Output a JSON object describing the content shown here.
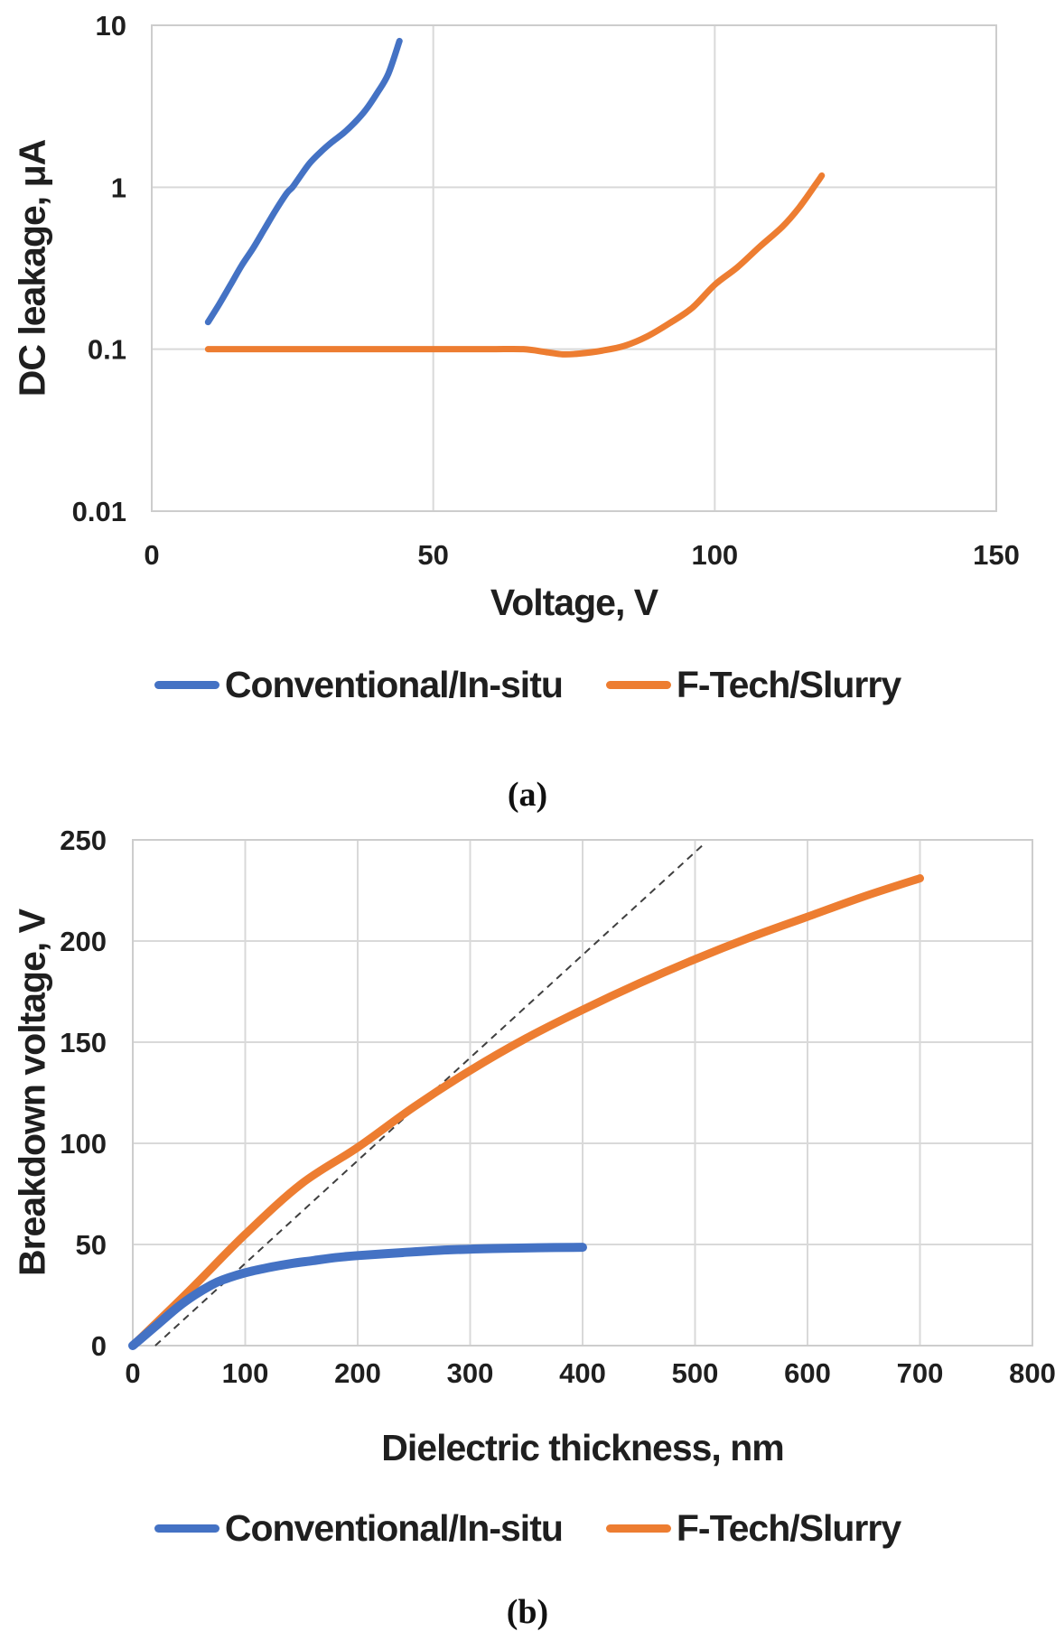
{
  "captions": {
    "a": "(a)",
    "b": "(b)"
  },
  "colors": {
    "series_blue": "#4472C4",
    "series_orange": "#ED7D31",
    "reference_dash": "#3F3F3F",
    "gridline": "#D9D9D9",
    "frame": "#CDCDCD",
    "text": "#1F1F1F"
  },
  "chart_data": [
    {
      "type": "line",
      "panel": "a",
      "title": "",
      "xlabel": "Voltage, V",
      "ylabel": "DC leakage, μA",
      "xlim": [
        0,
        150
      ],
      "xticks": [
        0,
        50,
        100,
        150
      ],
      "xtick_labels": [
        "0",
        "50",
        "100",
        "150"
      ],
      "yscale": "log",
      "ylim": [
        0.01,
        10
      ],
      "yticks": [
        0.01,
        0.1,
        1,
        10
      ],
      "ytick_labels": [
        "0.01",
        "0.1",
        "1",
        "10"
      ],
      "grid": true,
      "legend_position": "bottom",
      "series": [
        {
          "name": "Conventional/In-situ",
          "color": "#4472C4",
          "width": 7,
          "x": [
            10,
            12,
            14,
            16,
            18,
            20,
            22,
            24,
            25,
            26,
            28,
            30,
            32,
            34,
            36,
            38,
            40,
            42,
            44
          ],
          "y": [
            0.147,
            0.19,
            0.25,
            0.33,
            0.42,
            0.55,
            0.72,
            0.92,
            1.0,
            1.12,
            1.4,
            1.65,
            1.9,
            2.15,
            2.5,
            3.0,
            3.8,
            5.0,
            8.0
          ]
        },
        {
          "name": "F-Tech/Slurry",
          "color": "#ED7D31",
          "width": 7,
          "x": [
            10,
            20,
            30,
            40,
            50,
            60,
            66,
            70,
            73,
            76,
            80,
            84,
            88,
            92,
            96,
            100,
            104,
            108,
            112,
            115,
            118,
            119
          ],
          "y": [
            0.1,
            0.1,
            0.1,
            0.1,
            0.1,
            0.1,
            0.1,
            0.096,
            0.093,
            0.094,
            0.098,
            0.105,
            0.12,
            0.145,
            0.18,
            0.25,
            0.32,
            0.43,
            0.57,
            0.75,
            1.05,
            1.18
          ]
        }
      ]
    },
    {
      "type": "line",
      "panel": "b",
      "title": "",
      "xlabel": "Dielectric thickness, nm",
      "ylabel": "Breakdown voltage, V",
      "xlim": [
        0,
        800
      ],
      "xticks": [
        0,
        100,
        200,
        300,
        400,
        500,
        600,
        700,
        800
      ],
      "xtick_labels": [
        "0",
        "100",
        "200",
        "300",
        "400",
        "500",
        "600",
        "700",
        "800"
      ],
      "yscale": "linear",
      "ylim": [
        0,
        250
      ],
      "yticks": [
        0,
        50,
        100,
        150,
        200,
        250
      ],
      "ytick_labels": [
        "0",
        "50",
        "100",
        "150",
        "200",
        "250"
      ],
      "grid": true,
      "legend_position": "bottom",
      "series": [
        {
          "name": "Conventional/In-situ",
          "color": "#4472C4",
          "width": 10,
          "x": [
            0,
            20,
            40,
            55,
            70,
            80,
            100,
            120,
            140,
            160,
            180,
            200,
            240,
            280,
            320,
            360,
            400
          ],
          "y": [
            0,
            9.5,
            19,
            25,
            30,
            32.5,
            36,
            38.5,
            40.5,
            42,
            43.5,
            44.5,
            46,
            47.3,
            48,
            48.4,
            48.6
          ]
        },
        {
          "name": "F-Tech/Slurry",
          "color": "#ED7D31",
          "width": 9,
          "x": [
            0,
            50,
            100,
            150,
            200,
            250,
            300,
            350,
            400,
            450,
            500,
            550,
            600,
            650,
            700
          ],
          "y": [
            0,
            27,
            55,
            80,
            98,
            118,
            136,
            152,
            166,
            179,
            191,
            202,
            212,
            222,
            231
          ]
        }
      ],
      "reference_line": {
        "name": "linear-extrapolation-guide",
        "style": "dashed",
        "color": "#3F3F3F",
        "width": 2,
        "x": [
          20,
          508
        ],
        "y": [
          0,
          248
        ]
      }
    }
  ]
}
